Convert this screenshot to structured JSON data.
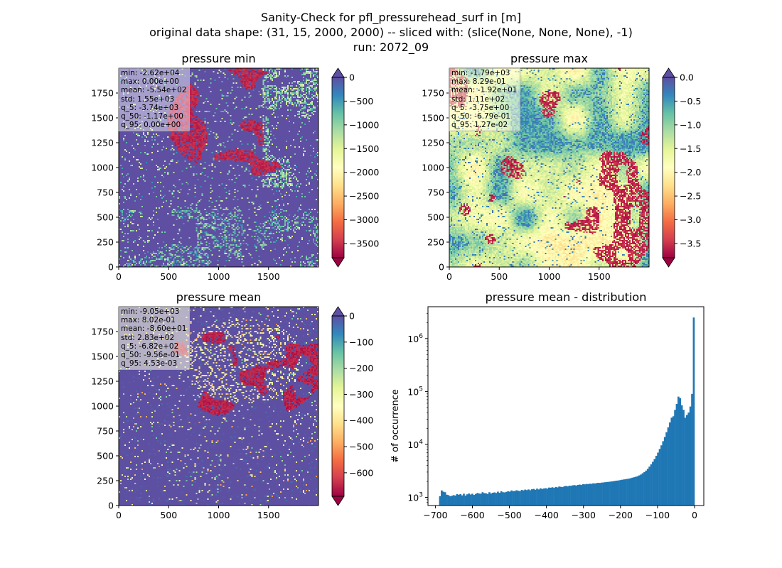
{
  "figure": {
    "title_line1": "Sanity-Check for pfl_pressurehead_surf in [m]",
    "title_line2": "original data shape: (31, 15, 2000, 2000) -- sliced with: (slice(None, None, None), -1)",
    "title_line3": "run: 2072_09"
  },
  "colors": {
    "spectral": [
      "#9e0142",
      "#d53e4f",
      "#f46d43",
      "#fdae61",
      "#fee08b",
      "#ffffbf",
      "#e6f598",
      "#abdda4",
      "#66c2a5",
      "#3288bd",
      "#5e4fa2"
    ],
    "hist_bar": "#1f77b4"
  },
  "chart_data": [
    {
      "type": "heatmap",
      "title": "pressure min",
      "xlim": [
        0,
        2000
      ],
      "ylim": [
        0,
        2000
      ],
      "x_ticks": [
        0,
        500,
        1000,
        1500
      ],
      "y_ticks": [
        0,
        250,
        500,
        750,
        1000,
        1250,
        1500,
        1750
      ],
      "colorbar": {
        "vmin": -3800,
        "vmax": 0,
        "ticks": [
          0,
          -500,
          -1000,
          -1500,
          -2000,
          -2500,
          -3000,
          -3500
        ],
        "extend": "both"
      },
      "dominant_value": 0,
      "stats": [
        "min: -2.62e+04",
        "max: 0.00e+00",
        "mean: -5.54e+02",
        "std: 1.55e+03",
        "q_5: -3.74e+03",
        "q_50: -1.17e+00",
        "q_95: 0.00e+00"
      ]
    },
    {
      "type": "heatmap",
      "title": "pressure max",
      "xlim": [
        0,
        2000
      ],
      "ylim": [
        0,
        2000
      ],
      "x_ticks": [
        0,
        500,
        1000,
        1500
      ],
      "y_ticks": [
        0,
        250,
        500,
        750,
        1000,
        1250,
        1500,
        1750
      ],
      "colorbar": {
        "vmin": -3.8,
        "vmax": 0,
        "ticks": [
          "0.0",
          "-0.5",
          "-1.0",
          "-1.5",
          "-2.0",
          "-2.5",
          "-3.0",
          "-3.5"
        ],
        "extend": "both"
      },
      "dominant_value": -0.7,
      "stats": [
        "min: -1.79e+03",
        "max: 8.29e-01",
        "mean: -1.92e+01",
        "std: 1.11e+02",
        "q_5: -3.75e+00",
        "q_50: -6.79e-01",
        "q_95: 1.27e-02"
      ]
    },
    {
      "type": "heatmap",
      "title": "pressure mean",
      "xlim": [
        0,
        2000
      ],
      "ylim": [
        0,
        2000
      ],
      "x_ticks": [
        0,
        500,
        1000,
        1500
      ],
      "y_ticks": [
        0,
        250,
        500,
        750,
        1000,
        1250,
        1500,
        1750
      ],
      "colorbar": {
        "vmin": -690,
        "vmax": 0,
        "ticks": [
          0,
          -100,
          -200,
          -300,
          -400,
          -500,
          -600
        ],
        "extend": "both"
      },
      "dominant_value": -1,
      "stats": [
        "min: -9.05e+03",
        "max: 8.02e-01",
        "mean: -8.60e+01",
        "std: 2.83e+02",
        "q_5: -6.82e+02",
        "q_50: -9.56e-01",
        "q_95: 4.53e-03"
      ]
    },
    {
      "type": "bar",
      "title": "pressure mean - distribution",
      "xlabel": "",
      "ylabel": "# of occurrence",
      "yscale": "log",
      "xlim": [
        -720,
        25
      ],
      "ylim": [
        700,
        4000000
      ],
      "x_ticks": [
        -700,
        -600,
        -500,
        -400,
        -300,
        -200,
        -100,
        0
      ],
      "y_ticks": [
        {
          "value": 1000,
          "label": "10",
          "exp": "3"
        },
        {
          "value": 10000,
          "label": "10",
          "exp": "4"
        },
        {
          "value": 100000,
          "label": "10",
          "exp": "5"
        },
        {
          "value": 1000000,
          "label": "10",
          "exp": "6"
        }
      ],
      "bin_range": [
        -690,
        0
      ],
      "bin_count": 150,
      "values": [
        1050,
        1350,
        1280,
        1250,
        1120,
        1100,
        1050,
        1070,
        1100,
        1080,
        1150,
        1120,
        1150,
        1090,
        1170,
        1080,
        1140,
        1180,
        1130,
        1170,
        1110,
        1160,
        1210,
        1180,
        1170,
        1250,
        1200,
        1190,
        1160,
        1250,
        1180,
        1220,
        1240,
        1210,
        1280,
        1220,
        1300,
        1250,
        1240,
        1270,
        1300,
        1280,
        1350,
        1310,
        1320,
        1360,
        1330,
        1310,
        1380,
        1350,
        1400,
        1370,
        1410,
        1360,
        1420,
        1440,
        1390,
        1460,
        1410,
        1480,
        1440,
        1470,
        1490,
        1460,
        1530,
        1520,
        1550,
        1510,
        1570,
        1540,
        1600,
        1580,
        1560,
        1620,
        1640,
        1610,
        1660,
        1650,
        1690,
        1700,
        1670,
        1720,
        1740,
        1710,
        1770,
        1760,
        1790,
        1780,
        1810,
        1800,
        1840,
        1830,
        1860,
        1880,
        1870,
        1900,
        1910,
        1930,
        1950,
        1960,
        1980,
        2000,
        2020,
        2050,
        2070,
        2090,
        2120,
        2150,
        2180,
        2200,
        2230,
        2260,
        2300,
        2350,
        2400,
        2450,
        2500,
        2600,
        2700,
        2850,
        3000,
        3200,
        3450,
        3800,
        4200,
        4700,
        5300,
        6100,
        7000,
        8200,
        9600,
        11500,
        13800,
        17000,
        21000,
        26000,
        32000,
        34000,
        45000,
        58000,
        80000,
        75000,
        55000,
        45000,
        32000,
        36000,
        40000,
        52000,
        90000,
        2500000
      ]
    }
  ]
}
